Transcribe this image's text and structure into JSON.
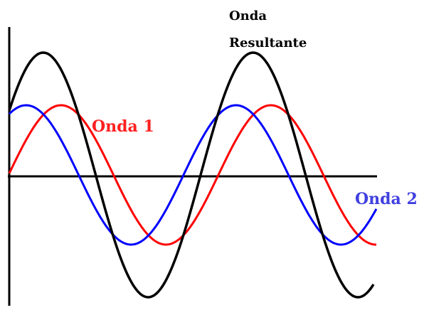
{
  "resultant_label": [
    "Onda",
    "Resultante"
  ],
  "wave_1_label": "Onda 1",
  "wave_2_label": "Onda 2"
}
